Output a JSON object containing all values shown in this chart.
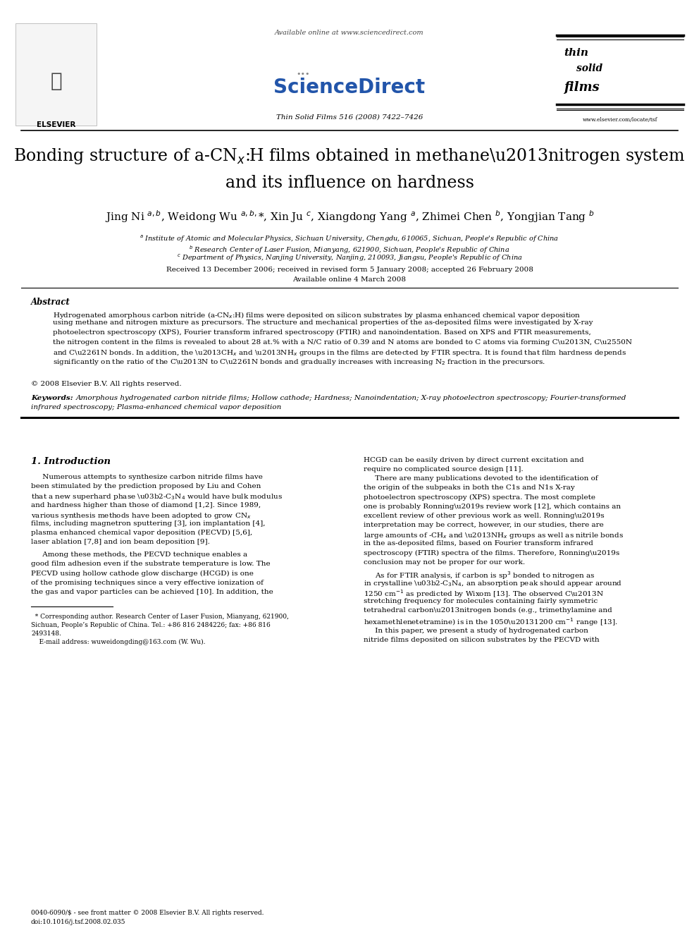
{
  "bg_color": "#ffffff",
  "journal": "Thin Solid Films 516 (2008) 7422–7426",
  "sdirect_url": "Available online at www.sciencedirect.com",
  "abstract_title": "Abstract",
  "copyright": "© 2008 Elsevier B.V. All rights reserved.",
  "keywords_label": "Keywords:",
  "section1_title": "1. Introduction",
  "footnote1a": "* Corresponding author. Research Center of Laser Fusion, Mianyang, 621900,",
  "footnote1b": "Sichuan, People’s Republic of China. Tel.: +86 816 2484226; fax: +86 816",
  "footnote1c": "2493148.",
  "footnote2": "    E-mail address: wuweidongding@163.com (W. Wu).",
  "footer1": "0040-6090/$ - see front matter © 2008 Elsevier B.V. All rights reserved.",
  "footer2": "doi:10.1016/j.tsf.2008.02.035"
}
